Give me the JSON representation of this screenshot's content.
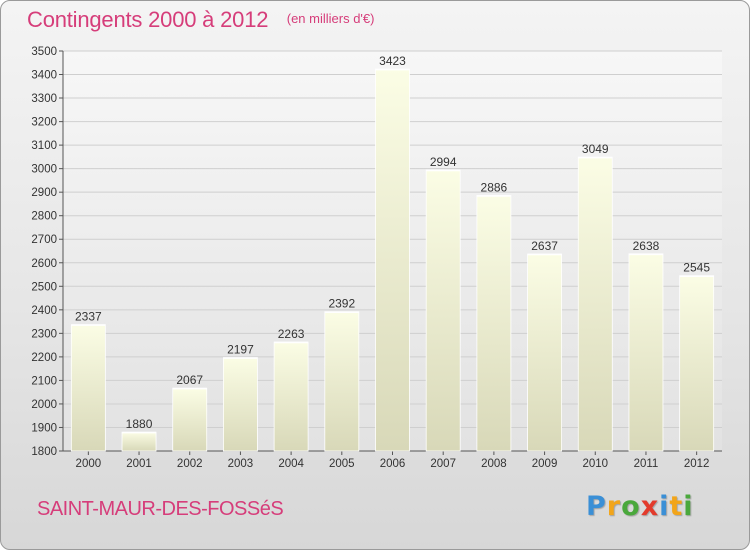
{
  "title": "Contingents 2000 à 2012",
  "subtitle": "(en milliers d'€)",
  "commune": "SAINT-MAUR-DES-FOSSéS",
  "brand": {
    "letters": [
      "P",
      "r",
      "o",
      "x",
      "i",
      "t",
      "i"
    ],
    "colors": [
      "#3a8fd6",
      "#f2a51a",
      "#4aa83c",
      "#e33b2c",
      "#3a8fd6",
      "#f2a51a",
      "#4aa83c"
    ]
  },
  "colors": {
    "accent": "#d63d7a",
    "bar_top": "#fbfde5",
    "bar_bottom": "#d8d8b8"
  },
  "chart_data": {
    "type": "bar",
    "categories": [
      "2000",
      "2001",
      "2002",
      "2003",
      "2004",
      "2005",
      "2006",
      "2007",
      "2008",
      "2009",
      "2010",
      "2011",
      "2012"
    ],
    "values": [
      2337,
      1880,
      2067,
      2197,
      2263,
      2392,
      3423,
      2994,
      2886,
      2637,
      3049,
      2638,
      2545
    ],
    "data_labels": [
      "2337",
      "1880",
      "2067",
      "2197",
      "2263",
      "2392",
      "3423",
      "2994",
      "2886",
      "2637",
      "3049",
      "2638",
      "2545"
    ],
    "ylim": [
      1800,
      3500
    ],
    "yticks": [
      1800,
      1900,
      2000,
      2100,
      2200,
      2300,
      2400,
      2500,
      2600,
      2700,
      2800,
      2900,
      3000,
      3100,
      3200,
      3300,
      3400,
      3500
    ],
    "xlabel": "",
    "ylabel": "",
    "grid": true,
    "legend": "none"
  }
}
